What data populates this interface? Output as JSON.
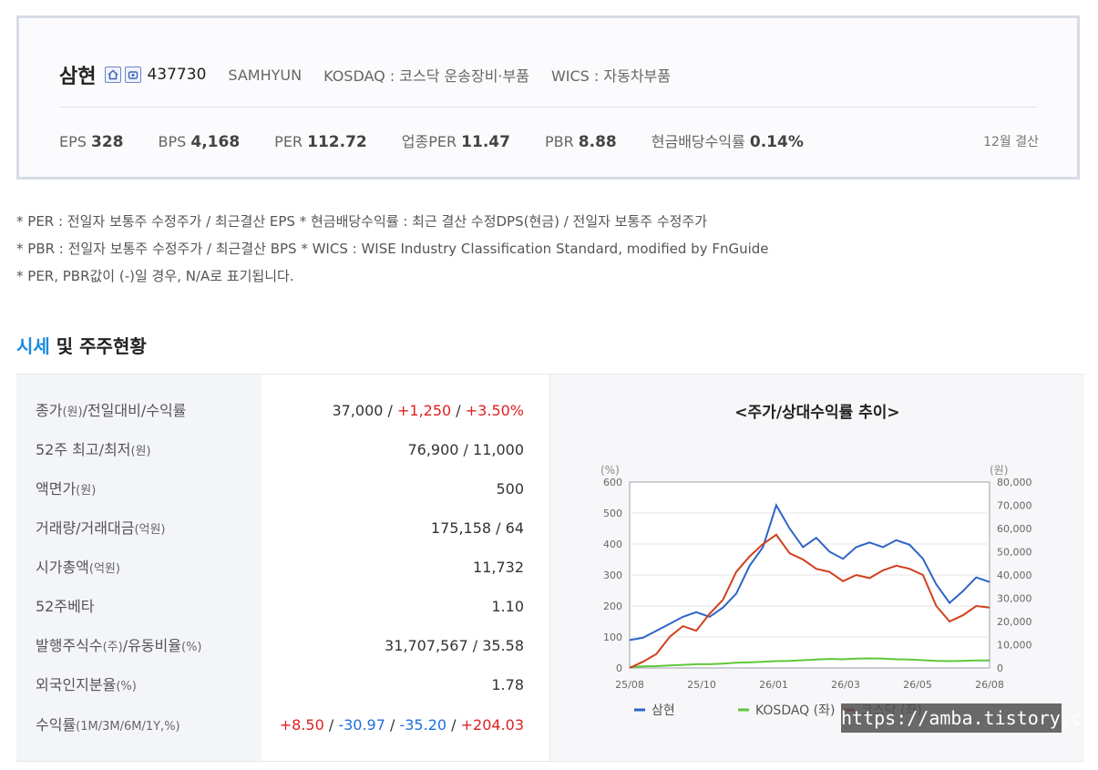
{
  "company": {
    "name": "삼현",
    "code": "437730",
    "english_name": "SAMHYUN",
    "market": "KOSDAQ : 코스닥 운송장비·부품",
    "wics": "WICS : 자동차부품",
    "icons": [
      "home-icon",
      "phone-icon"
    ]
  },
  "stats": [
    {
      "label": "EPS",
      "value": "328"
    },
    {
      "label": "BPS",
      "value": "4,168"
    },
    {
      "label": "PER",
      "value": "112.72"
    },
    {
      "label": "업종PER",
      "value": "11.47"
    },
    {
      "label": "PBR",
      "value": "8.88"
    },
    {
      "label": "현금배당수익률",
      "value": "0.14%"
    }
  ],
  "settlement": "12월 결산",
  "notes": [
    "* PER : 전일자 보통주 수정주가 / 최근결산 EPS * 현금배당수익률 : 최근 결산 수정DPS(현금) / 전일자 보통주 수정주가",
    "* PBR : 전일자 보통주 수정주가 / 최근결산 BPS * WICS : WISE Industry Classification Standard, modified by FnGuide",
    "* PER, PBR값이 (-)일 경우, N/A로 표기됩니다."
  ],
  "section": {
    "title_accent": "시세",
    "title_rest": " 및 주주현황"
  },
  "table": {
    "rows": [
      {
        "label": "종가",
        "unit": "(원)",
        "label2": "/전일대비/수익률"
      },
      {
        "label": "52주 최고/최저",
        "unit": "(원)",
        "label2": "",
        "value": "76,900 / 11,000"
      },
      {
        "label": "액면가",
        "unit": "(원)",
        "label2": "",
        "value": "500"
      },
      {
        "label": "거래량/거래대금",
        "unit": "(억원)",
        "label2": "",
        "value": "175,158 / 64"
      },
      {
        "label": "시가총액",
        "unit": "(억원)",
        "label2": "",
        "value": "11,732"
      },
      {
        "label": "52주베타",
        "unit": "",
        "label2": "",
        "value": "1.10"
      },
      {
        "label": "발행주식수",
        "unit": "(주)",
        "label2": "/유동비율",
        "unit2": "(%)",
        "value": "31,707,567 / 35.58"
      },
      {
        "label": "외국인지분율",
        "unit": "(%)",
        "label2": "",
        "value": "1.78"
      },
      {
        "label": "수익률",
        "unit": "(1M/3M/6M/1Y,%)",
        "label2": ""
      }
    ],
    "close": {
      "price": "37,000",
      "sep": " / ",
      "change": "+1,250",
      "rate": "+3.50%"
    },
    "returns": {
      "m1": "+8.50",
      "m3": "-30.97",
      "m6": "-35.20",
      "y1": "+204.03",
      "sep": " / "
    }
  },
  "chart_title": "<주가/상대수익률 추이>",
  "chart_data": {
    "type": "line",
    "left_unit": "(%)",
    "right_unit": "(원)",
    "left_ticks": [
      "600",
      "500",
      "400",
      "300",
      "200",
      "100",
      "0"
    ],
    "right_ticks": [
      "80,000",
      "70,000",
      "60,000",
      "50,000",
      "40,000",
      "30,000",
      "20,000",
      "10,000",
      "0"
    ],
    "ylim_left": [
      0,
      600
    ],
    "ylim_right": [
      0,
      80000
    ],
    "x_ticks": [
      "25/08",
      "25/10",
      "26/01",
      "26/03",
      "26/05",
      "26/08"
    ],
    "legend": [
      "삼현",
      "KOSDAQ (좌)",
      "코스닥 (좌)"
    ],
    "colors": {
      "samhyun": "#2e64c8",
      "kosdaq": "#5ec83a",
      "sector": "#d0401e"
    },
    "series": [
      {
        "name": "삼현",
        "axis": "right",
        "values": [
          12000,
          13000,
          16000,
          19000,
          22000,
          24000,
          22000,
          26000,
          32000,
          44000,
          52000,
          70000,
          60000,
          52000,
          56000,
          50000,
          47000,
          52000,
          54000,
          52000,
          55000,
          53000,
          47000,
          36000,
          28000,
          33000,
          39000,
          37000
        ]
      },
      {
        "name": "KOSDAQ (좌)",
        "axis": "left",
        "values": [
          3,
          5,
          6,
          8,
          10,
          12,
          12,
          14,
          17,
          18,
          20,
          22,
          23,
          25,
          27,
          29,
          28,
          30,
          31,
          30,
          28,
          27,
          25,
          23,
          22,
          23,
          24,
          24
        ]
      },
      {
        "name": "코스닥 (좌)",
        "axis": "left",
        "values": [
          0,
          20,
          45,
          100,
          135,
          120,
          175,
          220,
          310,
          360,
          400,
          430,
          370,
          350,
          320,
          310,
          280,
          300,
          290,
          315,
          330,
          320,
          300,
          200,
          150,
          170,
          200,
          195
        ]
      }
    ]
  },
  "watermark": "https://amba.tistory.com"
}
